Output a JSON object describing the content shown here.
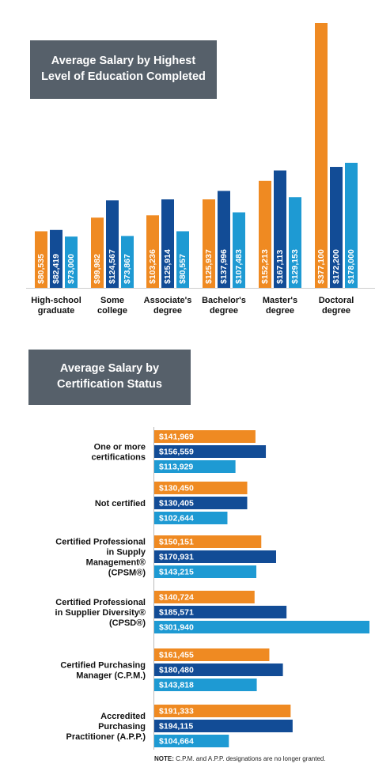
{
  "colors": {
    "orange": "#ef8a22",
    "navy": "#124c96",
    "blue": "#1e9ad3",
    "title_bg": "#56606a"
  },
  "chart_data": [
    {
      "type": "bar",
      "title": "Average Salary by Highest\nLevel of Education Completed",
      "categories": [
        "High-school\ngraduate",
        "Some\ncollege",
        "Associate's\ndegree",
        "Bachelor's\ndegree",
        "Master's\ndegree",
        "Doctoral\ndegree"
      ],
      "series": [
        {
          "values": [
            80535,
            99982,
            103236,
            125937,
            152213,
            377100
          ],
          "labels": [
            "$80,535",
            "$99,982",
            "$103,236",
            "$125,937",
            "$152,213",
            "$377,100"
          ]
        },
        {
          "values": [
            82419,
            124567,
            125914,
            137996,
            167113,
            172200
          ],
          "labels": [
            "$82,419",
            "$124,567",
            "$125,914",
            "$137,996",
            "$167,113",
            "$172,200"
          ]
        },
        {
          "values": [
            73000,
            73867,
            80557,
            107483,
            129153,
            178000
          ],
          "labels": [
            "$73,000",
            "$73,867",
            "$80,557",
            "$107,483",
            "$129,153",
            "$178,000"
          ]
        }
      ]
    },
    {
      "type": "bar",
      "orientation": "horizontal",
      "title": "Average Salary by\nCertification Status",
      "categories": [
        "One or more\ncertifications",
        "Not certified",
        "Certified Professional\nin Supply\nManagement®\n(CPSM®)",
        "Certified Professional\nin Supplier Diversity®\n(CPSD®)",
        "Certified Purchasing\nManager (C.P.M.)",
        "Accredited\nPurchasing\nPractitioner (A.P.P.)"
      ],
      "series": [
        {
          "values": [
            141969,
            130450,
            150151,
            140724,
            161455,
            191333
          ],
          "labels": [
            "$141,969",
            "$130,450",
            "$150,151",
            "$140,724",
            "$161,455",
            "$191,333"
          ]
        },
        {
          "values": [
            156559,
            130405,
            170931,
            185571,
            180480,
            194115
          ],
          "labels": [
            "$156,559",
            "$130,405",
            "$170,931",
            "$185,571",
            "$180,480",
            "$194,115"
          ]
        },
        {
          "values": [
            113929,
            102644,
            143215,
            301940,
            143818,
            104664
          ],
          "labels": [
            "$113,929",
            "$102,644",
            "$143,215",
            "$301,940",
            "$143,818",
            "$104,664"
          ]
        }
      ],
      "note_label": "NOTE:",
      "note_text": " C.P.M. and A.P.P. designations are no longer granted."
    }
  ]
}
